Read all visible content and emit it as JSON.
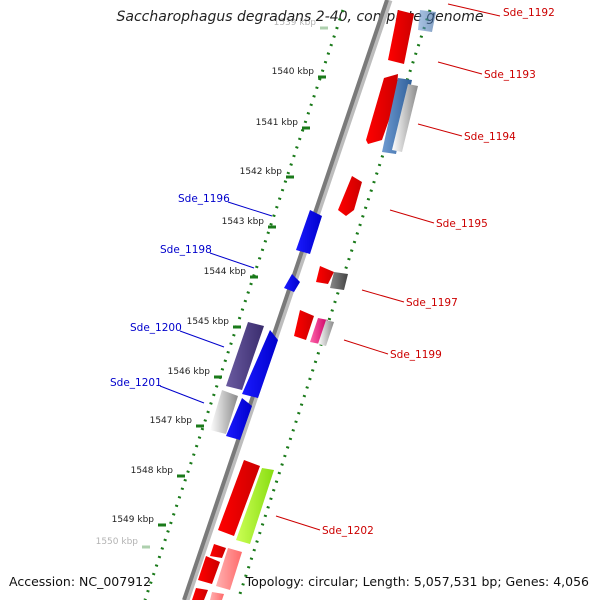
{
  "title": "Saccharophagus degradans 2-40, complete genome",
  "footer": {
    "accession": "Accession: NC_007912",
    "summary": "Topology: circular; Length: 5,057,531 bp; Genes: 4,056"
  },
  "colors": {
    "forward_label": "#cc0000",
    "reverse_label": "#0000cc",
    "backbone": "#808080",
    "tick": "#1a7a1a"
  },
  "ticks": [
    {
      "label": "1539 kbp",
      "faded": true
    },
    {
      "label": "1540 kbp"
    },
    {
      "label": "1541 kbp"
    },
    {
      "label": "1542 kbp"
    },
    {
      "label": "1543 kbp"
    },
    {
      "label": "1544 kbp"
    },
    {
      "label": "1545 kbp"
    },
    {
      "label": "1546 kbp"
    },
    {
      "label": "1547 kbp"
    },
    {
      "label": "1548 kbp"
    },
    {
      "label": "1549 kbp"
    },
    {
      "label": "1550 kbp",
      "faded": true
    }
  ],
  "gene_labels": [
    {
      "name": "Sde_1192",
      "strand": "forward"
    },
    {
      "name": "Sde_1193",
      "strand": "forward"
    },
    {
      "name": "Sde_1194",
      "strand": "forward"
    },
    {
      "name": "Sde_1195",
      "strand": "forward"
    },
    {
      "name": "Sde_1196",
      "strand": "reverse"
    },
    {
      "name": "Sde_1197",
      "strand": "forward"
    },
    {
      "name": "Sde_1198",
      "strand": "reverse"
    },
    {
      "name": "Sde_1199",
      "strand": "forward"
    },
    {
      "name": "Sde_1200",
      "strand": "reverse"
    },
    {
      "name": "Sde_1201",
      "strand": "reverse"
    },
    {
      "name": "Sde_1202",
      "strand": "forward"
    }
  ]
}
